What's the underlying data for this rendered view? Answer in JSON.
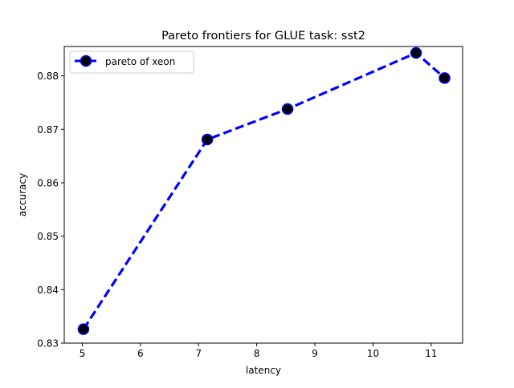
{
  "chart_data": {
    "type": "line",
    "title": "Pareto frontiers for GLUE task: sst2",
    "xlabel": "latency",
    "ylabel": "accuracy",
    "xlim": [
      4.69,
      11.54
    ],
    "ylim": [
      0.83,
      0.8855
    ],
    "x_ticks": [
      5,
      6,
      7,
      8,
      9,
      10,
      11
    ],
    "y_ticks": [
      0.83,
      0.84,
      0.85,
      0.86,
      0.87,
      0.88
    ],
    "y_tick_labels": [
      "0.83",
      "0.84",
      "0.85",
      "0.86",
      "0.87",
      "0.88"
    ],
    "grid": false,
    "legend_position": "upper-left",
    "series": [
      {
        "name": "pareto of xeon",
        "color": "#0000ff",
        "marker_color": "#000000",
        "line_style": "dashed",
        "x": [
          5.02,
          7.15,
          8.53,
          10.74,
          11.23
        ],
        "y": [
          0.8326,
          0.8681,
          0.8738,
          0.8843,
          0.8796
        ]
      }
    ]
  }
}
